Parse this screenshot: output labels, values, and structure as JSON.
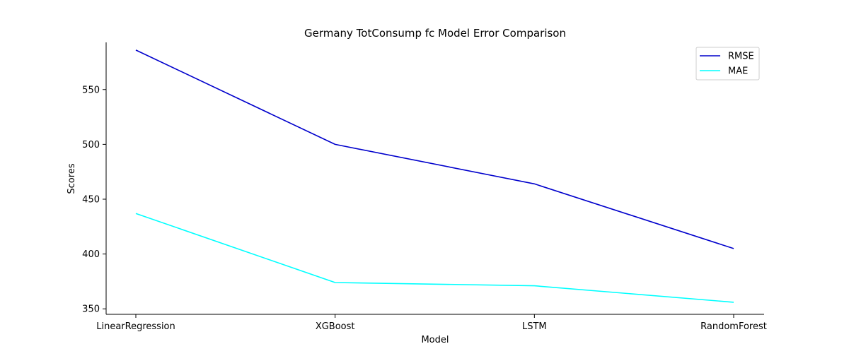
{
  "chart_data": {
    "type": "line",
    "title": "Germany TotConsump fc Model Error Comparison",
    "xlabel": "Model",
    "ylabel": "Scores",
    "categories": [
      "LinearRegression",
      "XGBoost",
      "LSTM",
      "RandomForest"
    ],
    "series": [
      {
        "name": "RMSE",
        "values": [
          586,
          500,
          464,
          405
        ],
        "color": "#0000cc"
      },
      {
        "name": "MAE",
        "values": [
          437,
          374,
          371,
          356
        ],
        "color": "#00ffff"
      }
    ],
    "ylim": [
      345,
      593
    ],
    "yticks": [
      350,
      400,
      450,
      500,
      550
    ],
    "grid": false,
    "legend_position": "top-right"
  }
}
